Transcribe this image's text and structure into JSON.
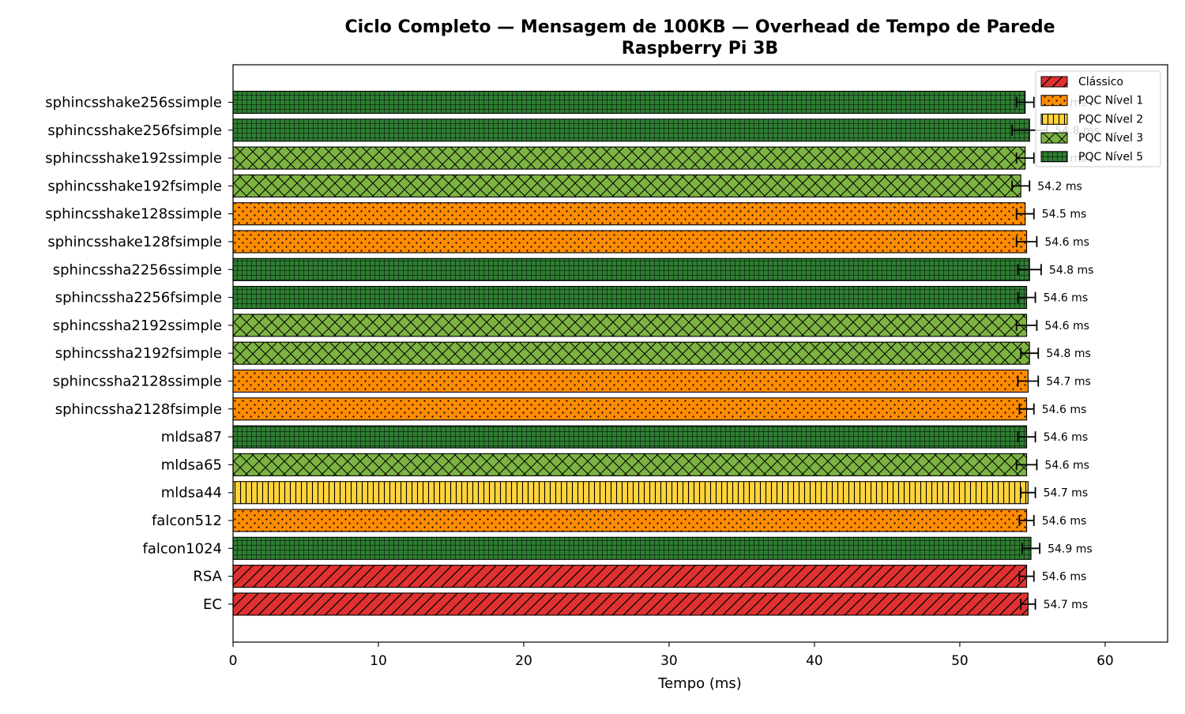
{
  "chart_data": {
    "type": "bar",
    "orientation": "horizontal",
    "title": "Ciclo Completo — Mensagem de 100KB — Overhead de Tempo de Parede",
    "subtitle": "Raspberry Pi 3B",
    "xlabel": "Tempo (ms)",
    "ylabel": "",
    "xlim": [
      0,
      64.3
    ],
    "xticks": [
      0,
      10,
      20,
      30,
      40,
      50,
      60
    ],
    "grid": false,
    "legend_position": "top-right",
    "unit_suffix": " ms",
    "legend": [
      {
        "label": "Clássico",
        "color": "#e03131",
        "pattern": "diagonal"
      },
      {
        "label": "PQC Nível 1",
        "color": "#ff8c00",
        "pattern": "dots"
      },
      {
        "label": "PQC Nível 2",
        "color": "#ffd43b",
        "pattern": "vertical"
      },
      {
        "label": "PQC Nível 3",
        "color": "#7cb342",
        "pattern": "crosshatch"
      },
      {
        "label": "PQC Nível 5",
        "color": "#2e7d32",
        "pattern": "grid"
      }
    ],
    "bars": [
      {
        "category": "sphincsshake256ssimple",
        "value": 54.5,
        "error": 0.6,
        "label": "54.5 ms",
        "level": 4
      },
      {
        "category": "sphincsshake256fsimple",
        "value": 54.8,
        "error": 1.2,
        "label": "54.8 ms",
        "level": 4
      },
      {
        "category": "sphincsshake192ssimple",
        "value": 54.5,
        "error": 0.6,
        "label": "54.5 ms",
        "level": 3
      },
      {
        "category": "sphincsshake192fsimple",
        "value": 54.2,
        "error": 0.6,
        "label": "54.2 ms",
        "level": 3
      },
      {
        "category": "sphincsshake128ssimple",
        "value": 54.5,
        "error": 0.6,
        "label": "54.5 ms",
        "level": 1
      },
      {
        "category": "sphincsshake128fsimple",
        "value": 54.6,
        "error": 0.7,
        "label": "54.6 ms",
        "level": 1
      },
      {
        "category": "sphincssha2256ssimple",
        "value": 54.8,
        "error": 0.8,
        "label": "54.8 ms",
        "level": 4
      },
      {
        "category": "sphincssha2256fsimple",
        "value": 54.6,
        "error": 0.6,
        "label": "54.6 ms",
        "level": 4
      },
      {
        "category": "sphincssha2192ssimple",
        "value": 54.6,
        "error": 0.7,
        "label": "54.6 ms",
        "level": 3
      },
      {
        "category": "sphincssha2192fsimple",
        "value": 54.8,
        "error": 0.6,
        "label": "54.8 ms",
        "level": 3
      },
      {
        "category": "sphincssha2128ssimple",
        "value": 54.7,
        "error": 0.7,
        "label": "54.7 ms",
        "level": 1
      },
      {
        "category": "sphincssha2128fsimple",
        "value": 54.6,
        "error": 0.5,
        "label": "54.6 ms",
        "level": 1
      },
      {
        "category": "mldsa87",
        "value": 54.6,
        "error": 0.6,
        "label": "54.6 ms",
        "level": 4
      },
      {
        "category": "mldsa65",
        "value": 54.6,
        "error": 0.7,
        "label": "54.6 ms",
        "level": 3
      },
      {
        "category": "mldsa44",
        "value": 54.7,
        "error": 0.5,
        "label": "54.7 ms",
        "level": 2
      },
      {
        "category": "falcon512",
        "value": 54.6,
        "error": 0.5,
        "label": "54.6 ms",
        "level": 1
      },
      {
        "category": "falcon1024",
        "value": 54.9,
        "error": 0.6,
        "label": "54.9 ms",
        "level": 4
      },
      {
        "category": "RSA",
        "value": 54.6,
        "error": 0.5,
        "label": "54.6 ms",
        "level": 0
      },
      {
        "category": "EC",
        "value": 54.7,
        "error": 0.5,
        "label": "54.7 ms",
        "level": 0
      }
    ]
  }
}
